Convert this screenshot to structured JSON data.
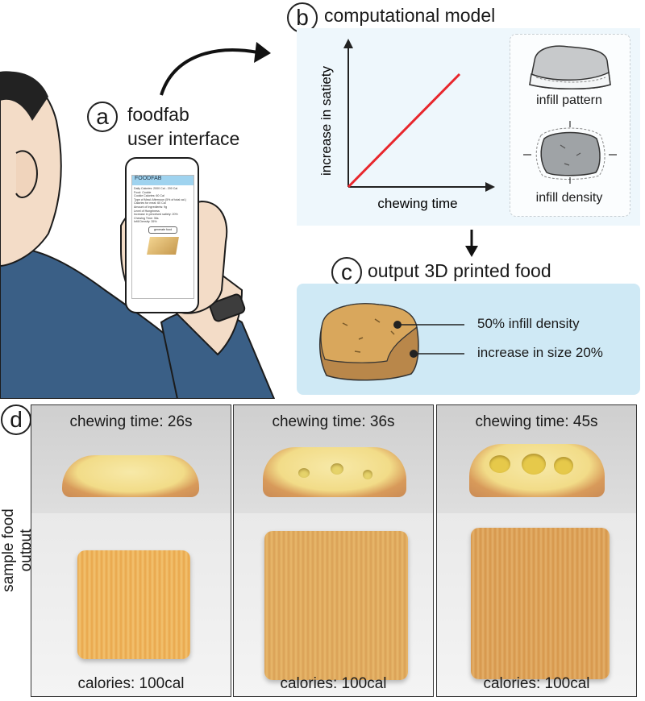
{
  "panel_a": {
    "letter": "a",
    "line1": "foodfab",
    "line2": "user interface",
    "phone": {
      "app_title": "FOODFAB",
      "button": "generate food",
      "lines": [
        "Daily Calories: 2000 Cal - 200 Cal",
        "Food: Cookie",
        "Cookie Calories: 60 Cal",
        "Type of Meal: Afternoon (5% of total cal.)",
        "Calories for meal: 60 Cal",
        "Amount of Ingredients: 9g",
        "Level of Hungriness",
        "Increase in perceived satiety: 20%",
        "Chewing Time: 36s",
        "Infill Density: 35%"
      ]
    }
  },
  "panel_b": {
    "letter": "b",
    "title": "computational model",
    "chart_data": {
      "type": "line",
      "xlabel": "chewing time",
      "ylabel": "increase in satiety",
      "series": [
        {
          "name": "satiety",
          "color": "#e8262c",
          "points": [
            [
              0,
              0
            ],
            [
              1,
              1
            ]
          ]
        }
      ],
      "xlim": [
        0,
        1
      ],
      "ylim": [
        0,
        1
      ]
    },
    "infill_pattern": "infill pattern",
    "infill_density": "infill density"
  },
  "panel_c": {
    "letter": "c",
    "title": "output 3D printed food",
    "label_density": "50% infill density",
    "label_size": "increase in size 20%"
  },
  "panel_d": {
    "letter": "d",
    "side_label": "sample food output",
    "samples": [
      {
        "chewing": "chewing time: 26s",
        "calories": "calories: 100cal"
      },
      {
        "chewing": "chewing time: 36s",
        "calories": "calories: 100cal"
      },
      {
        "chewing": "chewing time: 45s",
        "calories": "calories: 100cal"
      }
    ]
  },
  "colors": {
    "line": "#e8262c",
    "panel_b_bg": "#eef7fc",
    "panel_c_bg": "#cfe9f5"
  }
}
